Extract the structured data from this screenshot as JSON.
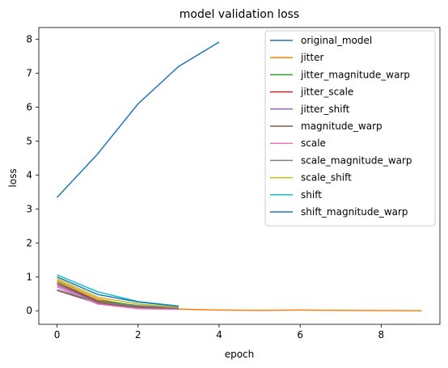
{
  "chart_data": {
    "type": "line",
    "title": "model validation loss",
    "xlabel": "epoch",
    "ylabel": "loss",
    "xlim": [
      -0.45,
      9.45
    ],
    "ylim": [
      -0.4,
      8.35
    ],
    "xticks": [
      0,
      2,
      4,
      6,
      8
    ],
    "yticks": [
      0,
      1,
      2,
      3,
      4,
      5,
      6,
      7,
      8
    ],
    "grid": false,
    "legend": "top-right",
    "series": [
      {
        "name": "original_model",
        "color": "#1f77b4",
        "x": [
          0,
          1,
          2,
          3,
          4
        ],
        "y": [
          3.34,
          4.62,
          6.1,
          7.2,
          7.92
        ]
      },
      {
        "name": "jitter",
        "color": "#ff7f0e",
        "x": [
          0,
          1,
          2,
          3,
          4,
          5,
          6,
          7,
          8,
          9
        ],
        "y": [
          0.9,
          0.35,
          0.12,
          0.05,
          0.02,
          0.01,
          0.02,
          0.01,
          0.005,
          0.0
        ]
      },
      {
        "name": "jitter_magnitude_warp",
        "color": "#2ca02c",
        "x": [
          0,
          1,
          2,
          3
        ],
        "y": [
          0.85,
          0.3,
          0.15,
          0.08
        ]
      },
      {
        "name": "jitter_scale",
        "color": "#d62728",
        "x": [
          0,
          1,
          2,
          3
        ],
        "y": [
          0.8,
          0.28,
          0.12,
          0.06
        ]
      },
      {
        "name": "jitter_shift",
        "color": "#9467bd",
        "x": [
          0,
          1,
          2,
          3
        ],
        "y": [
          0.75,
          0.25,
          0.1,
          0.05
        ]
      },
      {
        "name": "magnitude_warp",
        "color": "#8c564b",
        "x": [
          0,
          1,
          2,
          3
        ],
        "y": [
          0.6,
          0.22,
          0.1,
          0.06
        ]
      },
      {
        "name": "scale",
        "color": "#e377c2",
        "x": [
          0,
          1,
          2,
          3
        ],
        "y": [
          0.7,
          0.2,
          0.06,
          0.04
        ]
      },
      {
        "name": "scale_magnitude_warp",
        "color": "#7f7f7f",
        "x": [
          0,
          1,
          2,
          3
        ],
        "y": [
          0.62,
          0.26,
          0.14,
          0.09
        ]
      },
      {
        "name": "scale_shift",
        "color": "#bcbd22",
        "x": [
          0,
          1,
          2,
          3
        ],
        "y": [
          0.95,
          0.4,
          0.2,
          0.1
        ]
      },
      {
        "name": "shift",
        "color": "#17becf",
        "x": [
          0,
          1,
          2,
          3
        ],
        "y": [
          1.06,
          0.56,
          0.27,
          0.14
        ]
      },
      {
        "name": "shift_magnitude_warp",
        "color": "#1f77b4",
        "x": [
          0,
          1,
          2,
          3
        ],
        "y": [
          1.0,
          0.48,
          0.26,
          0.13
        ]
      }
    ]
  }
}
